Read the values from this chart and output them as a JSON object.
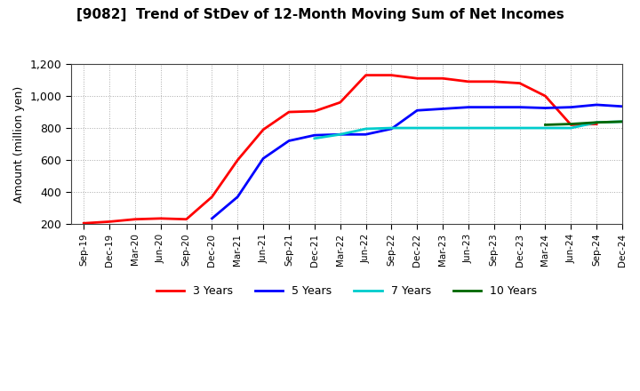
{
  "title": "[9082]  Trend of StDev of 12-Month Moving Sum of Net Incomes",
  "ylabel": "Amount (million yen)",
  "background_color": "#ffffff",
  "grid_color": "#aaaaaa",
  "ylim": [
    200,
    1200
  ],
  "yticks": [
    200,
    400,
    600,
    800,
    1000,
    1200
  ],
  "ytick_labels": [
    "200",
    "400",
    "600",
    "800",
    "1,000",
    "1,200"
  ],
  "x_labels": [
    "Sep-19",
    "Dec-19",
    "Mar-20",
    "Jun-20",
    "Sep-20",
    "Dec-20",
    "Mar-21",
    "Jun-21",
    "Sep-21",
    "Dec-21",
    "Mar-22",
    "Jun-22",
    "Sep-22",
    "Dec-22",
    "Mar-23",
    "Jun-23",
    "Sep-23",
    "Dec-23",
    "Mar-24",
    "Jun-24",
    "Sep-24",
    "Dec-24"
  ],
  "series": {
    "3 Years": {
      "color": "#ff0000",
      "data_x": [
        0,
        1,
        2,
        3,
        4,
        5,
        6,
        7,
        8,
        9,
        10,
        11,
        12,
        13,
        14,
        15,
        16,
        17,
        18,
        19,
        20
      ],
      "data_y": [
        205,
        215,
        230,
        235,
        230,
        370,
        600,
        790,
        900,
        905,
        960,
        1130,
        1130,
        1110,
        1110,
        1090,
        1090,
        1080,
        1000,
        820,
        825
      ]
    },
    "5 Years": {
      "color": "#0000ff",
      "data_x": [
        5,
        6,
        7,
        8,
        9,
        10,
        11,
        12,
        13,
        14,
        15,
        16,
        17,
        18,
        19,
        20,
        21
      ],
      "data_y": [
        235,
        370,
        610,
        720,
        755,
        760,
        760,
        795,
        910,
        920,
        930,
        930,
        930,
        925,
        930,
        945,
        935
      ]
    },
    "7 Years": {
      "color": "#00cccc",
      "data_x": [
        9,
        10,
        11,
        12,
        13,
        14,
        15,
        16,
        17,
        18,
        19,
        20,
        21
      ],
      "data_y": [
        735,
        760,
        795,
        800,
        800,
        800,
        800,
        800,
        800,
        800,
        800,
        835,
        840
      ]
    },
    "10 Years": {
      "color": "#006600",
      "data_x": [
        18,
        19,
        20,
        21
      ],
      "data_y": [
        820,
        825,
        835,
        840
      ]
    }
  },
  "legend_labels": [
    "3 Years",
    "5 Years",
    "7 Years",
    "10 Years"
  ],
  "legend_colors": [
    "#ff0000",
    "#0000ff",
    "#00cccc",
    "#006600"
  ]
}
